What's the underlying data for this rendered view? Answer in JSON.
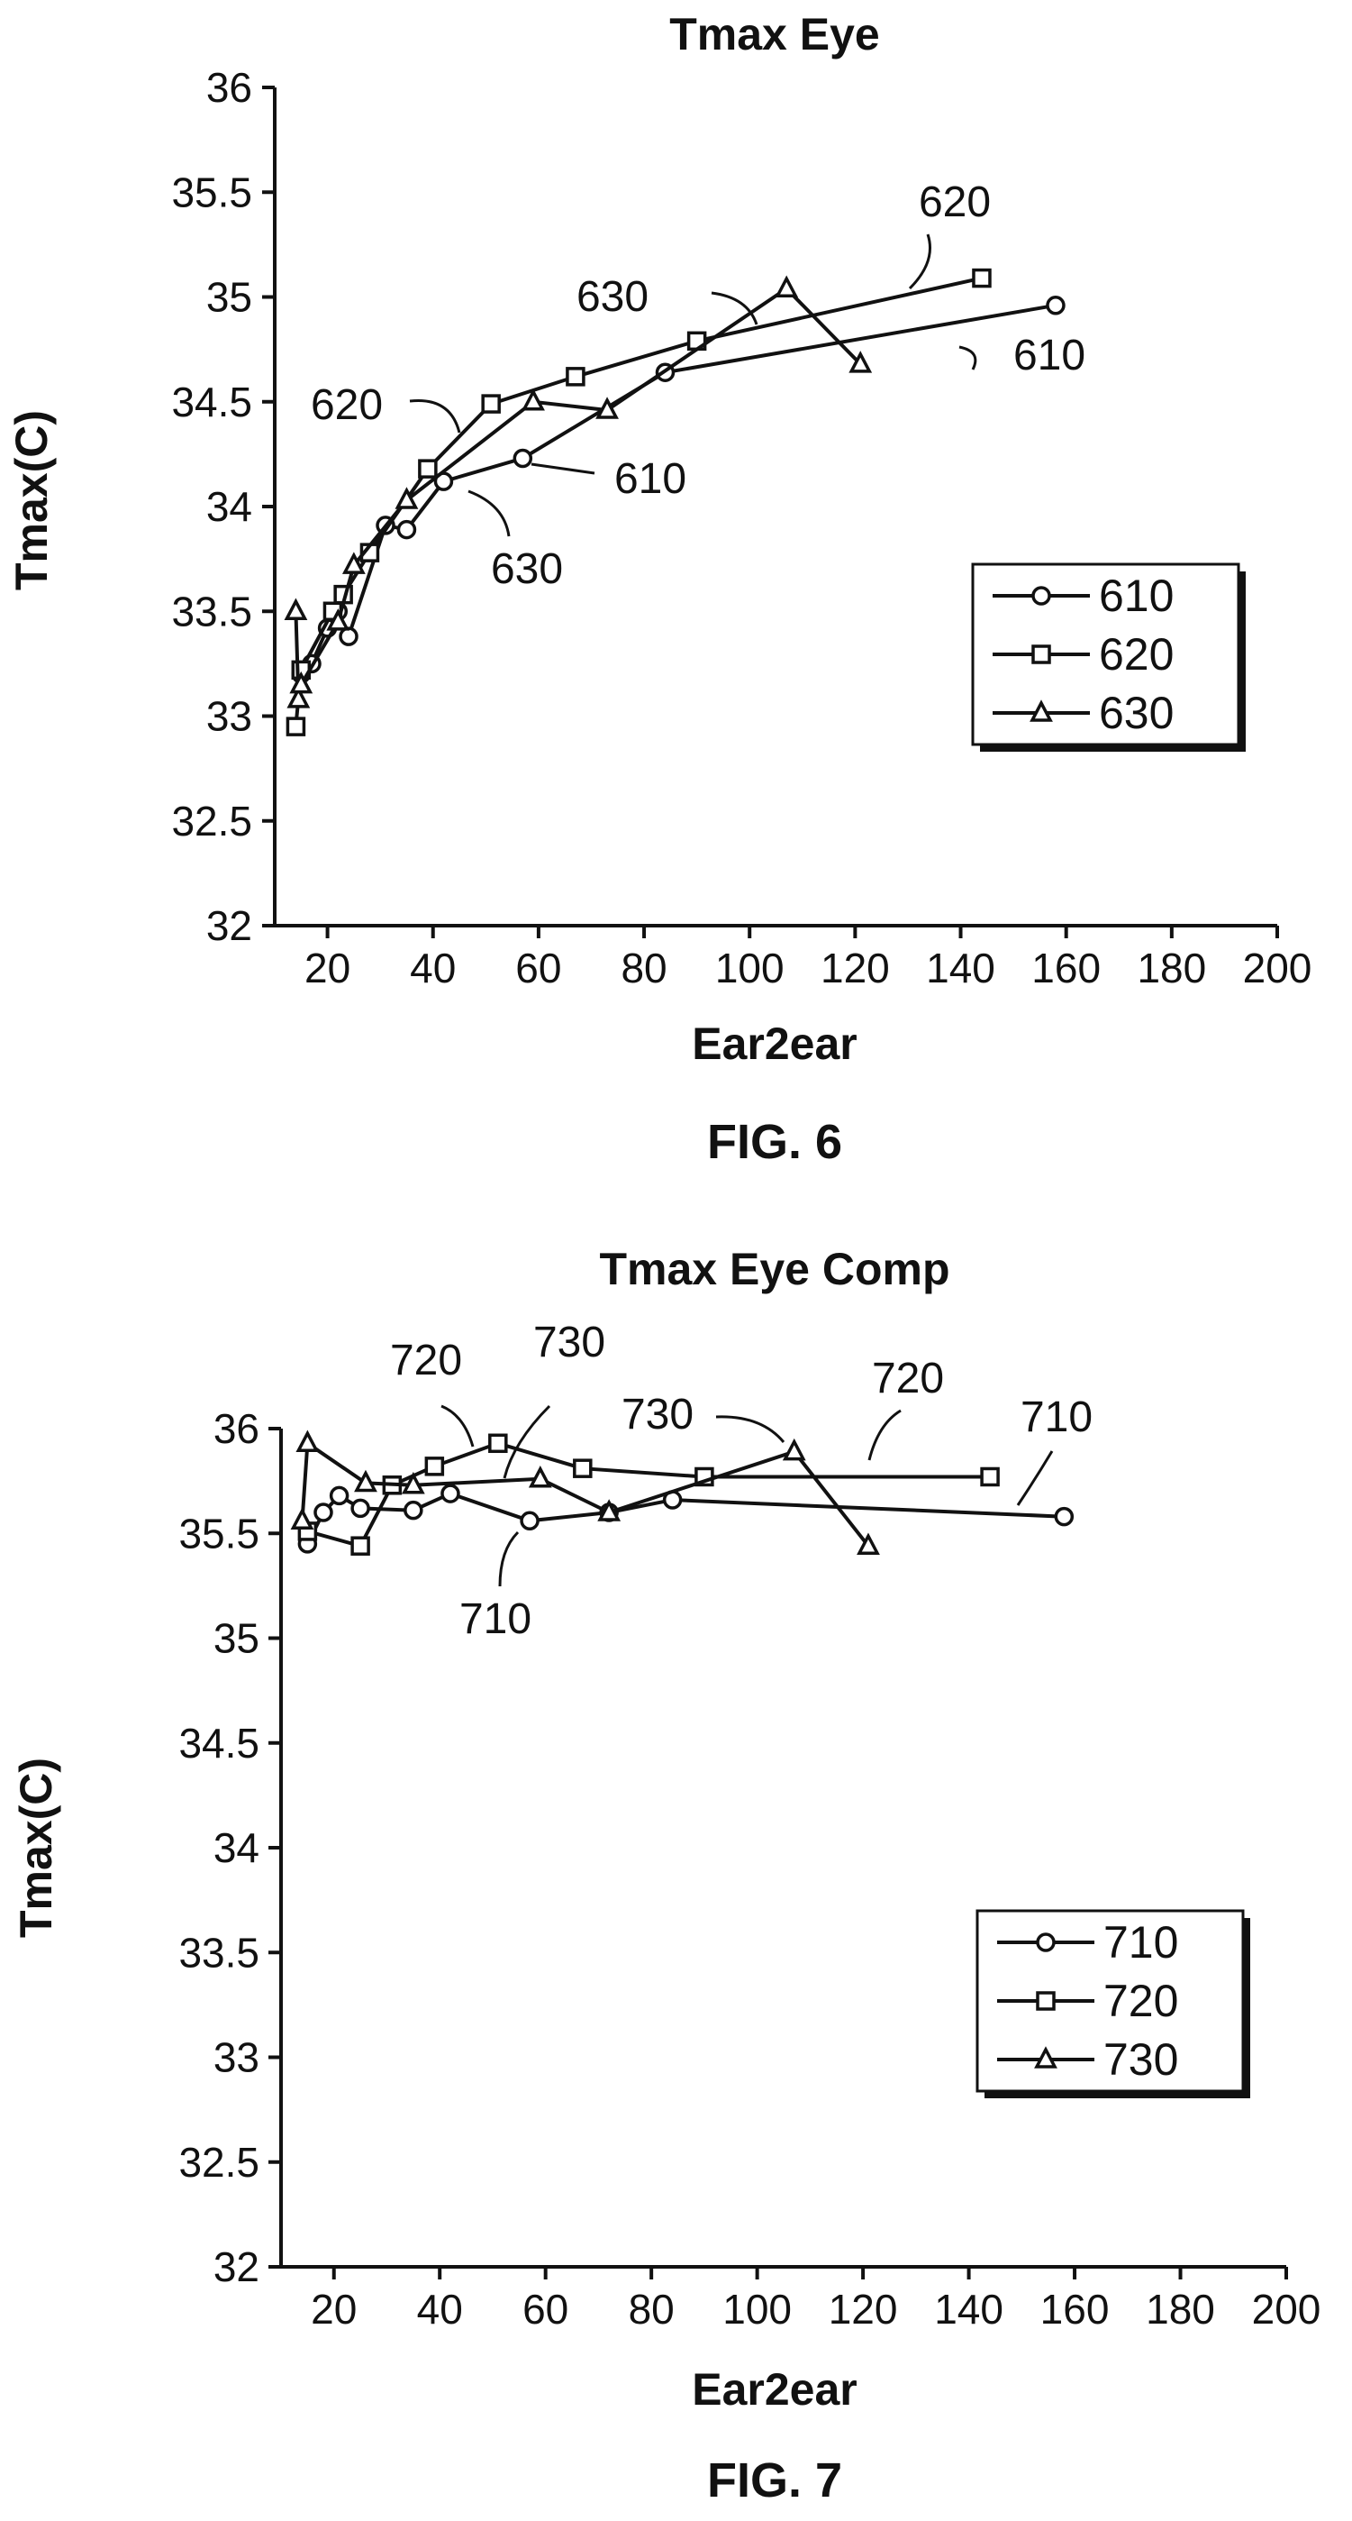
{
  "chart_data": [
    {
      "type": "line",
      "title": "Tmax Eye",
      "xlabel": "Ear2ear",
      "ylabel": "Tmax(C)",
      "caption": "FIG. 6",
      "xlim": [
        10,
        200
      ],
      "ylim": [
        32,
        36
      ],
      "xticks": [
        "20",
        "40",
        "60",
        "80",
        "100",
        "120",
        "140",
        "160",
        "180",
        "200"
      ],
      "yticks": [
        "32",
        "32.5",
        "33",
        "33.5",
        "34",
        "34.5",
        "35",
        "35.5",
        "36"
      ],
      "grid": false,
      "legend_position": "right",
      "series": [
        {
          "name": "610",
          "marker": "circle",
          "x": [
            15,
            17,
            20,
            22,
            24,
            31,
            35,
            42,
            57,
            84,
            158
          ],
          "y": [
            33.2,
            33.25,
            33.42,
            33.5,
            33.38,
            33.91,
            33.89,
            34.12,
            34.23,
            34.64,
            34.96
          ]
        },
        {
          "name": "620",
          "marker": "square",
          "x": [
            14,
            15,
            21,
            23,
            28,
            39,
            51,
            67,
            90,
            144
          ],
          "y": [
            32.95,
            33.22,
            33.5,
            33.58,
            33.78,
            34.18,
            34.49,
            34.62,
            34.79,
            35.09
          ]
        },
        {
          "name": "630",
          "marker": "triangle",
          "x": [
            14,
            14.5,
            15,
            22,
            25,
            35,
            59,
            73,
            107,
            121
          ],
          "y": [
            33.5,
            33.08,
            33.15,
            33.45,
            33.72,
            34.03,
            34.5,
            34.46,
            35.04,
            34.68
          ]
        }
      ],
      "annotations": [
        {
          "text": "620"
        },
        {
          "text": "630"
        },
        {
          "text": "610"
        },
        {
          "text": "620"
        },
        {
          "text": "610"
        },
        {
          "text": "630"
        }
      ]
    },
    {
      "type": "line",
      "title": "Tmax Eye Comp",
      "xlabel": "Ear2ear",
      "ylabel": "Tmax(C)",
      "caption": "FIG. 7",
      "xlim": [
        10,
        200
      ],
      "ylim": [
        32,
        36
      ],
      "xticks": [
        "20",
        "40",
        "60",
        "80",
        "100",
        "120",
        "140",
        "160",
        "180",
        "200"
      ],
      "yticks": [
        "32",
        "32.5",
        "33",
        "33.5",
        "34",
        "34.5",
        "35",
        "35.5",
        "36"
      ],
      "grid": false,
      "legend_position": "bottom-right",
      "series": [
        {
          "name": "710",
          "marker": "circle",
          "x": [
            15,
            18,
            21,
            25,
            35,
            42,
            57,
            72,
            84,
            158
          ],
          "y": [
            35.45,
            35.6,
            35.68,
            35.62,
            35.61,
            35.69,
            35.56,
            35.6,
            35.66,
            35.58
          ]
        },
        {
          "name": "720",
          "marker": "square",
          "x": [
            15,
            25,
            31,
            39,
            51,
            67,
            90,
            144
          ],
          "y": [
            35.51,
            35.44,
            35.73,
            35.82,
            35.93,
            35.81,
            35.77,
            35.77
          ]
        },
        {
          "name": "730",
          "marker": "triangle",
          "x": [
            14,
            15,
            26,
            35,
            59,
            72,
            107,
            121
          ],
          "y": [
            35.56,
            35.93,
            35.74,
            35.73,
            35.76,
            35.6,
            35.89,
            35.44
          ]
        }
      ],
      "annotations": [
        {
          "text": "720"
        },
        {
          "text": "730"
        },
        {
          "text": "730"
        },
        {
          "text": "720"
        },
        {
          "text": "710"
        },
        {
          "text": "710"
        }
      ]
    }
  ]
}
